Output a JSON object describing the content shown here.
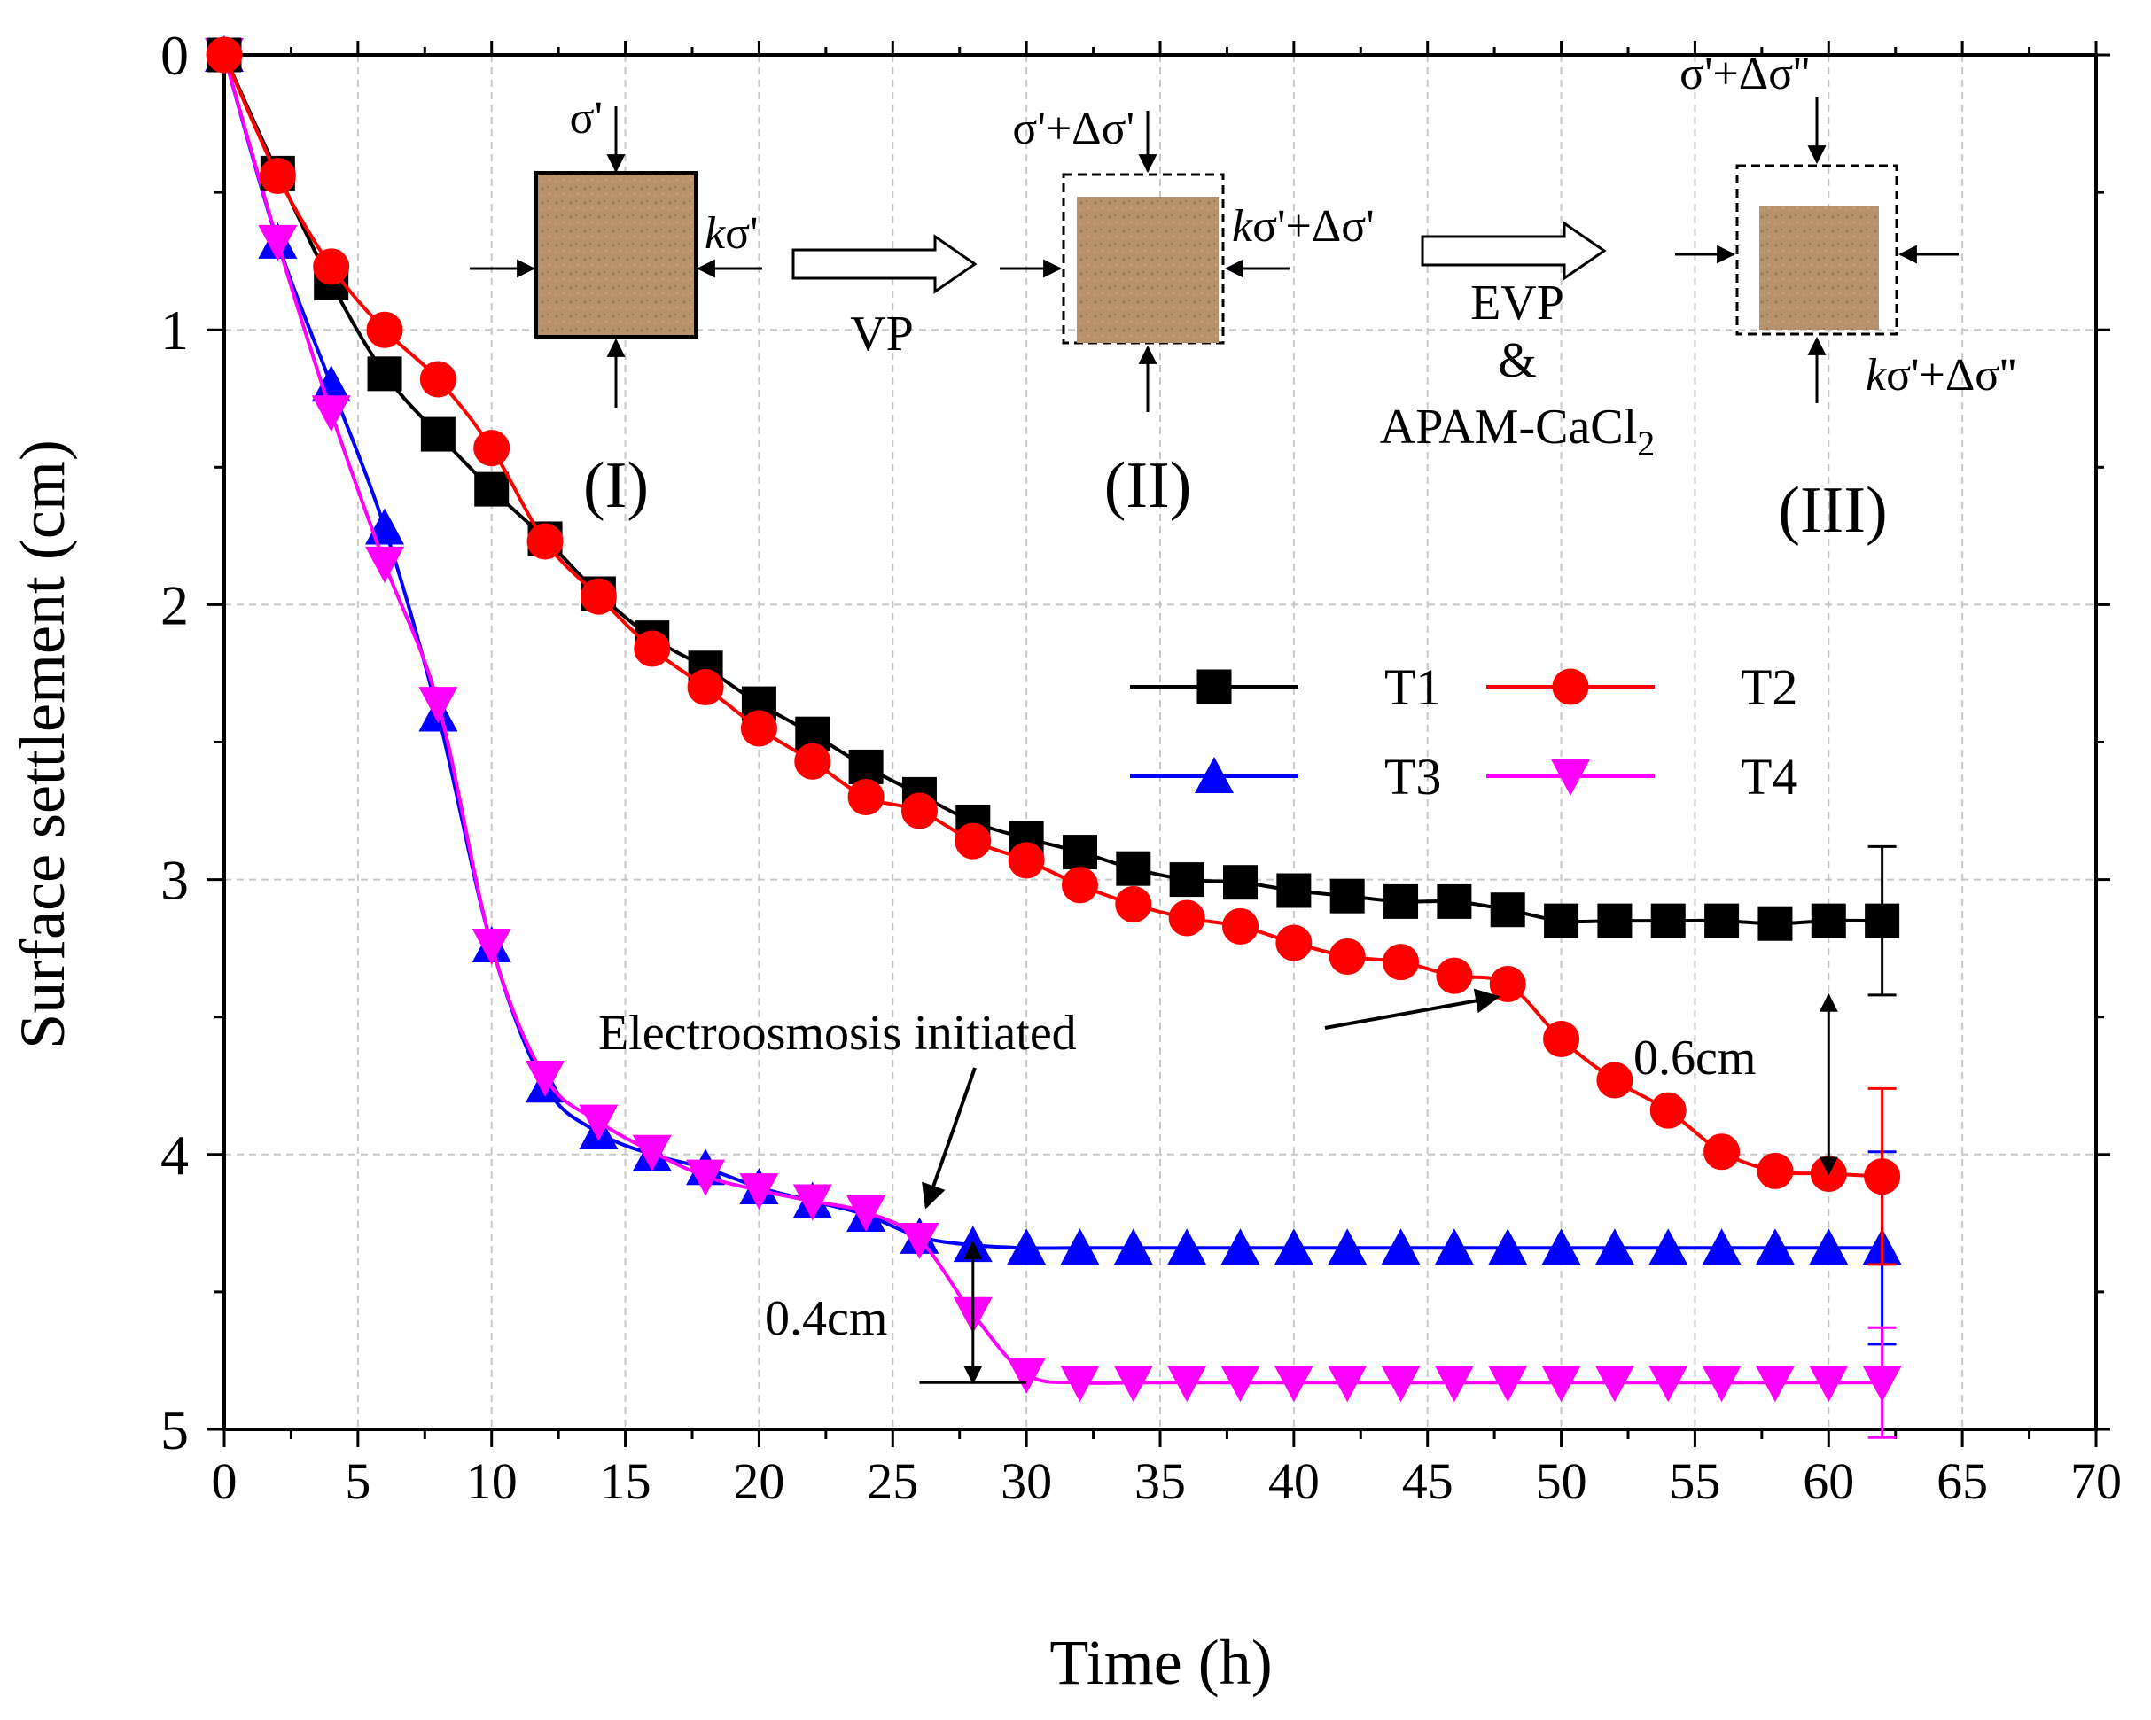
{
  "chart_data": {
    "type": "line",
    "xlabel": "Time (h)",
    "ylabel": "Surface settlement (cm)",
    "xlim": [
      0,
      70
    ],
    "ylim": [
      0,
      5
    ],
    "y_inverted": true,
    "grid": true,
    "xticks": [
      "0",
      "5",
      "10",
      "15",
      "20",
      "25",
      "30",
      "35",
      "40",
      "45",
      "50",
      "55",
      "60",
      "65",
      "70"
    ],
    "yticks": [
      "0",
      "1",
      "2",
      "3",
      "4",
      "5"
    ],
    "legend_position": "center-right",
    "series": [
      {
        "name": "T1",
        "color": "#000000",
        "marker": "square",
        "x": [
          0,
          2,
          4,
          6,
          8,
          10,
          12,
          14,
          16,
          18,
          20,
          22,
          24,
          26,
          28,
          30,
          32,
          34,
          36,
          38,
          40,
          42,
          44,
          46,
          48,
          50,
          52,
          54,
          56,
          58,
          60,
          62
        ],
        "values": [
          0,
          0.43,
          0.83,
          1.16,
          1.38,
          1.58,
          1.76,
          1.96,
          2.12,
          2.23,
          2.36,
          2.47,
          2.59,
          2.69,
          2.79,
          2.85,
          2.9,
          2.96,
          3.0,
          3.01,
          3.04,
          3.06,
          3.08,
          3.08,
          3.11,
          3.15,
          3.15,
          3.15,
          3.15,
          3.16,
          3.15,
          3.15
        ],
        "error_end": 0.27
      },
      {
        "name": "T2",
        "color": "#ff0000",
        "marker": "circle",
        "x": [
          0,
          2,
          4,
          6,
          8,
          10,
          12,
          14,
          16,
          18,
          20,
          22,
          24,
          26,
          28,
          30,
          32,
          34,
          36,
          38,
          40,
          42,
          44,
          46,
          48,
          50,
          52,
          54,
          56,
          58,
          60,
          62
        ],
        "values": [
          0,
          0.44,
          0.77,
          1.0,
          1.18,
          1.43,
          1.77,
          1.97,
          2.16,
          2.3,
          2.45,
          2.57,
          2.7,
          2.75,
          2.86,
          2.93,
          3.02,
          3.09,
          3.14,
          3.17,
          3.23,
          3.28,
          3.3,
          3.35,
          3.38,
          3.58,
          3.73,
          3.84,
          3.99,
          4.06,
          4.07,
          4.08
        ],
        "error_end": 0.32
      },
      {
        "name": "T3",
        "color": "#0000ff",
        "marker": "triangle-up",
        "x": [
          0,
          2,
          4,
          6,
          8,
          10,
          12,
          14,
          16,
          18,
          20,
          22,
          24,
          26,
          28,
          30,
          32,
          34,
          36,
          38,
          40,
          42,
          44,
          46,
          48,
          50,
          52,
          54,
          56,
          58,
          60,
          62
        ],
        "values": [
          0,
          0.68,
          1.2,
          1.72,
          2.4,
          3.24,
          3.75,
          3.92,
          4.0,
          4.05,
          4.12,
          4.17,
          4.22,
          4.3,
          4.33,
          4.34,
          4.34,
          4.34,
          4.34,
          4.34,
          4.34,
          4.34,
          4.34,
          4.34,
          4.34,
          4.34,
          4.34,
          4.34,
          4.34,
          4.34,
          4.34,
          4.34
        ],
        "error_end": 0.35
      },
      {
        "name": "T4",
        "color": "#ff00ff",
        "marker": "triangle-down",
        "x": [
          0,
          2,
          4,
          6,
          8,
          10,
          12,
          14,
          16,
          18,
          20,
          22,
          24,
          26,
          28,
          30,
          32,
          34,
          36,
          38,
          40,
          42,
          44,
          46,
          48,
          50,
          52,
          54,
          56,
          58,
          60,
          62
        ],
        "values": [
          0,
          0.68,
          1.3,
          1.85,
          2.36,
          3.24,
          3.72,
          3.88,
          3.99,
          4.08,
          4.13,
          4.17,
          4.21,
          4.31,
          4.58,
          4.8,
          4.83,
          4.83,
          4.83,
          4.83,
          4.83,
          4.83,
          4.83,
          4.83,
          4.83,
          4.83,
          4.83,
          4.83,
          4.83,
          4.83,
          4.83,
          4.83
        ],
        "error_end": 0.2
      }
    ],
    "annotations": {
      "electroosmosis": "Electroosmosis initiated",
      "gap_small": "0.4cm",
      "gap_large": "0.6cm"
    },
    "inset": {
      "stage_labels": [
        "(I)",
        "(II)",
        "(III)"
      ],
      "arrow_label_1": "VP",
      "arrow_label_2_line1": "EVP",
      "arrow_label_2_line2": "&",
      "arrow_label_2_line3": "APAM-CaCl",
      "arrow_label_2_sub": "2",
      "box1_top": "σ'",
      "box1_side_k": "k",
      "box1_side": "σ'",
      "box2_top": "σ'+Δσ'",
      "box2_side_k": "k",
      "box2_side": "σ'+Δσ'",
      "box3_top": "σ'+Δσ''",
      "box3_side_k": "k",
      "box3_side": "σ'+Δσ''",
      "soil_color": "#b8926a",
      "soil_color_dark": "#a07f58"
    }
  }
}
